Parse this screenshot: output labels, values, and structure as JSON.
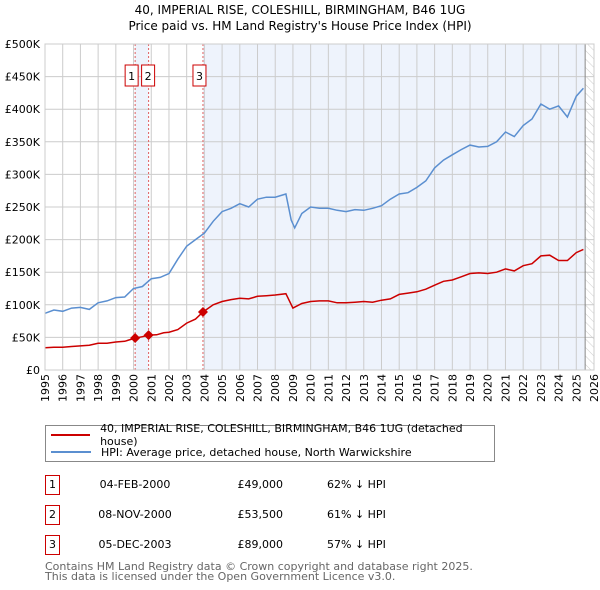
{
  "title_line1": "40, IMPERIAL RISE, COLESHILL, BIRMINGHAM, B46 1UG",
  "title_line2": "Price paid vs. HM Land Registry's House Price Index (HPI)",
  "colors": {
    "property": "#cc0000",
    "hpi": "#5b8fd0",
    "shade": "#eef3fc",
    "grid": "#cccccc"
  },
  "chart_data": {
    "type": "line",
    "xlim": [
      1995,
      2026
    ],
    "ylim": [
      0,
      500000
    ],
    "x_ticks": [
      "1995",
      "1996",
      "1997",
      "1998",
      "1999",
      "2000",
      "2001",
      "2002",
      "2003",
      "2004",
      "2005",
      "2006",
      "2007",
      "2008",
      "2009",
      "2010",
      "2011",
      "2012",
      "2013",
      "2014",
      "2015",
      "2016",
      "2017",
      "2018",
      "2019",
      "2020",
      "2021",
      "2022",
      "2023",
      "2024",
      "2025",
      "2026"
    ],
    "y_ticks": [
      {
        "v": 0,
        "label": "£0"
      },
      {
        "v": 50000,
        "label": "£50K"
      },
      {
        "v": 100000,
        "label": "£100K"
      },
      {
        "v": 150000,
        "label": "£150K"
      },
      {
        "v": 200000,
        "label": "£200K"
      },
      {
        "v": 250000,
        "label": "£250K"
      },
      {
        "v": 300000,
        "label": "£300K"
      },
      {
        "v": 350000,
        "label": "£350K"
      },
      {
        "v": 400000,
        "label": "£400K"
      },
      {
        "v": 450000,
        "label": "£450K"
      },
      {
        "v": 500000,
        "label": "£500K"
      }
    ],
    "grid": true,
    "shaded_ranges": [
      [
        2000.09,
        2000.85
      ],
      [
        2003.92,
        2025.5
      ]
    ],
    "hatched_from": 2025.5,
    "series": [
      {
        "name": "40, IMPERIAL RISE, COLESHILL, BIRMINGHAM, B46 1UG (detached house)",
        "x": [
          1995,
          1995.5,
          1996,
          1996.5,
          1997,
          1997.5,
          1998,
          1998.5,
          1999,
          1999.5,
          2000.09,
          2000.5,
          2000.85,
          2001.3,
          2001.7,
          2002,
          2002.5,
          2003,
          2003.5,
          2003.92,
          2004.5,
          2005,
          2005.5,
          2006,
          2006.5,
          2007,
          2007.5,
          2008,
          2008.6,
          2009,
          2009.5,
          2010,
          2010.5,
          2011,
          2011.5,
          2012,
          2012.5,
          2013,
          2013.5,
          2014,
          2014.5,
          2015,
          2015.5,
          2016,
          2016.5,
          2017,
          2017.5,
          2018,
          2018.5,
          2019,
          2019.5,
          2020,
          2020.5,
          2021,
          2021.5,
          2022,
          2022.5,
          2023,
          2023.5,
          2024,
          2024.5,
          2025,
          2025.4
        ],
        "values": [
          34000,
          35000,
          35000,
          36000,
          37000,
          38000,
          41000,
          41000,
          43000,
          44000,
          49000,
          51000,
          53500,
          54000,
          57000,
          58000,
          62000,
          72000,
          78000,
          89000,
          100000,
          105000,
          108000,
          110000,
          109000,
          113000,
          114000,
          115000,
          117000,
          95000,
          102000,
          105000,
          106000,
          106000,
          103000,
          103000,
          104000,
          105000,
          104000,
          107000,
          109000,
          116000,
          118000,
          120000,
          124000,
          130000,
          136000,
          138000,
          143000,
          148000,
          149000,
          148000,
          150000,
          155000,
          152000,
          160000,
          163000,
          175000,
          176000,
          168000,
          168000,
          180000,
          185000
        ]
      },
      {
        "name": "HPI: Average price, detached house, North Warwickshire",
        "x": [
          1995,
          1995.5,
          1996,
          1996.5,
          1997,
          1997.5,
          1998,
          1998.5,
          1999,
          1999.5,
          2000,
          2000.5,
          2001,
          2001.5,
          2002,
          2002.5,
          2003,
          2003.5,
          2004,
          2004.5,
          2005,
          2005.5,
          2006,
          2006.5,
          2007,
          2007.5,
          2008,
          2008.6,
          2008.9,
          2009.1,
          2009.5,
          2010,
          2010.5,
          2011,
          2011.5,
          2012,
          2012.5,
          2013,
          2013.5,
          2014,
          2014.5,
          2015,
          2015.5,
          2016,
          2016.5,
          2017,
          2017.5,
          2018,
          2018.5,
          2019,
          2019.5,
          2020,
          2020.5,
          2021,
          2021.5,
          2022,
          2022.5,
          2023,
          2023.5,
          2024,
          2024.5,
          2025,
          2025.4
        ],
        "values": [
          87000,
          92000,
          90000,
          95000,
          96000,
          93000,
          103000,
          106000,
          111000,
          112000,
          125000,
          128000,
          140000,
          142000,
          148000,
          170000,
          190000,
          200000,
          210000,
          228000,
          243000,
          248000,
          255000,
          250000,
          262000,
          265000,
          265000,
          270000,
          230000,
          218000,
          240000,
          250000,
          248000,
          248000,
          245000,
          243000,
          246000,
          245000,
          248000,
          252000,
          262000,
          270000,
          272000,
          280000,
          290000,
          310000,
          322000,
          330000,
          338000,
          345000,
          342000,
          343000,
          350000,
          365000,
          358000,
          375000,
          385000,
          408000,
          400000,
          405000,
          388000,
          420000,
          432000
        ]
      }
    ],
    "annotations": [
      {
        "label": "1",
        "x": 2000.09,
        "value": 49000
      },
      {
        "label": "2",
        "x": 2000.85,
        "value": 53500
      },
      {
        "label": "3",
        "x": 2003.92,
        "value": 89000
      }
    ]
  },
  "legend": [
    {
      "label": "40, IMPERIAL RISE, COLESHILL, BIRMINGHAM, B46 1UG (detached house)"
    },
    {
      "label": "HPI: Average price, detached house, North Warwickshire"
    }
  ],
  "transactions": [
    {
      "num": "1",
      "date": "04-FEB-2000",
      "price": "£49,000",
      "pct": "62% ↓ HPI"
    },
    {
      "num": "2",
      "date": "08-NOV-2000",
      "price": "£53,500",
      "pct": "61% ↓ HPI"
    },
    {
      "num": "3",
      "date": "05-DEC-2003",
      "price": "£89,000",
      "pct": "57% ↓ HPI"
    }
  ],
  "footer": {
    "line1": "Contains HM Land Registry data © Crown copyright and database right 2025.",
    "line2": "This data is licensed under the Open Government Licence v3.0."
  }
}
